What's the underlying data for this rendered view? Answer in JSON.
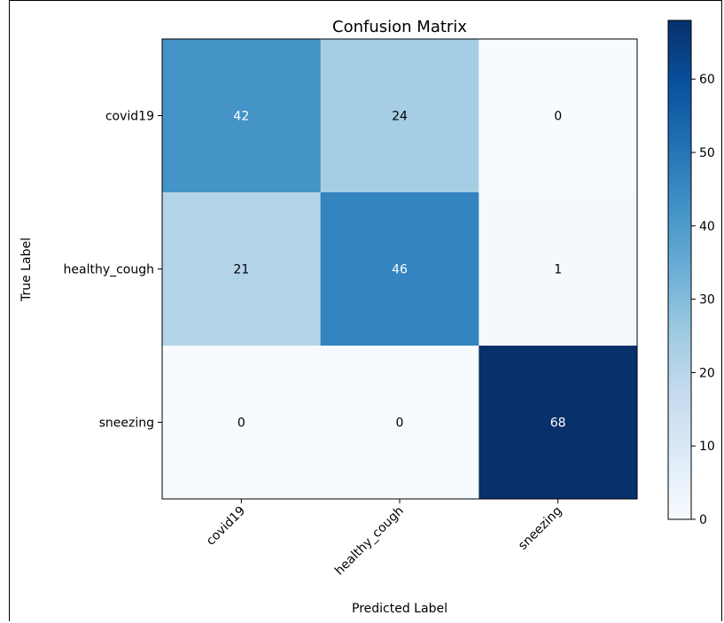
{
  "chart_data": {
    "type": "heatmap",
    "title": "Confusion Matrix",
    "xlabel": "Predicted Label",
    "ylabel": "True Label",
    "x_categories": [
      "covid19",
      "healthy_cough",
      "sneezing"
    ],
    "y_categories": [
      "covid19",
      "healthy_cough",
      "sneezing"
    ],
    "values": [
      [
        42,
        24,
        0
      ],
      [
        21,
        46,
        1
      ],
      [
        0,
        0,
        68
      ]
    ],
    "colorbar": {
      "min": 0,
      "max": 68,
      "ticks": [
        "0",
        "10",
        "20",
        "30",
        "40",
        "50",
        "60"
      ]
    },
    "colormap": "Blues"
  }
}
